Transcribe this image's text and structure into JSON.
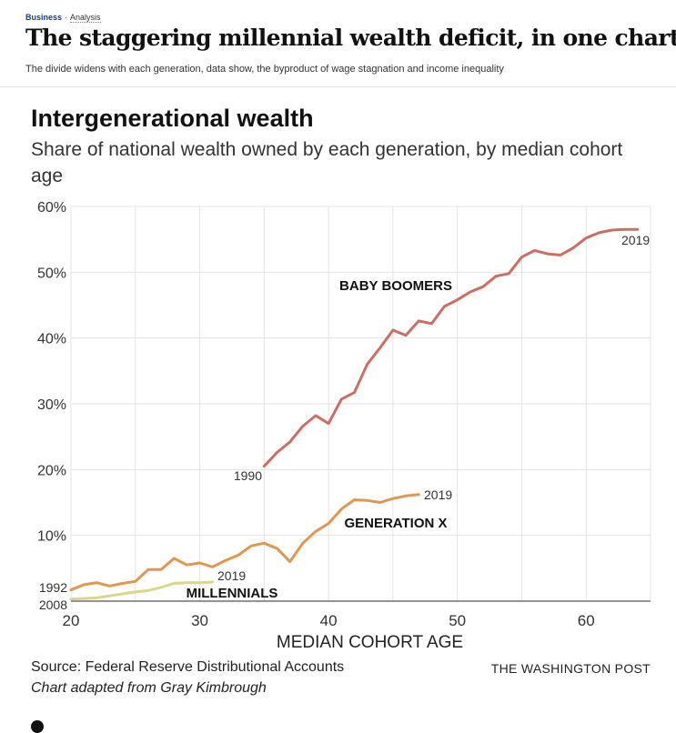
{
  "article": {
    "section": "Business",
    "tag": "Analysis",
    "headline": "The staggering millennial wealth deficit, in one chart",
    "dek": "The divide widens with each generation, data show, the byproduct of wage stagnation and income inequality"
  },
  "chart_data": {
    "type": "line",
    "title": "Intergenerational wealth",
    "subtitle": "Share of national wealth owned by each generation, by median cohort age",
    "xlabel": "MEDIAN COHORT AGE",
    "ylabel": "",
    "xlim": [
      20,
      65
    ],
    "ylim": [
      0,
      60
    ],
    "x_ticks": [
      20,
      30,
      40,
      50,
      60
    ],
    "x_tick_labels": [
      "20",
      "30",
      "40",
      "50",
      "60"
    ],
    "y_ticks": [
      10,
      20,
      30,
      40,
      50,
      60
    ],
    "y_tick_labels": [
      "10%",
      "20%",
      "30%",
      "40%",
      "50%",
      "60%"
    ],
    "grid": true,
    "legend": "none",
    "series": [
      {
        "name": "BABY BOOMERS",
        "color": "#cc6e62",
        "start_label": "1990",
        "end_label": "2019",
        "x": [
          35,
          36,
          37,
          38,
          39,
          40,
          41,
          42,
          43,
          44,
          45,
          46,
          47,
          48,
          49,
          50,
          51,
          52,
          53,
          54,
          55,
          56,
          57,
          58,
          59,
          60,
          61,
          62,
          63,
          64
        ],
        "values": [
          20.5,
          22.6,
          24.2,
          26.6,
          28.2,
          27.0,
          30.7,
          31.7,
          36.0,
          38.5,
          41.2,
          40.4,
          42.6,
          42.2,
          44.8,
          45.8,
          47.0,
          47.8,
          49.4,
          49.8,
          52.3,
          53.3,
          52.8,
          52.6,
          53.7,
          55.2,
          56.0,
          56.4,
          56.5,
          56.5
        ]
      },
      {
        "name": "GENERATION X",
        "color": "#e0974f",
        "start_label": "1992",
        "end_label": "2019",
        "x": [
          20,
          21,
          22,
          23,
          24,
          25,
          26,
          27,
          28,
          29,
          30,
          31,
          32,
          33,
          34,
          35,
          36,
          37,
          38,
          39,
          40,
          41,
          42,
          43,
          44,
          45,
          46,
          47
        ],
        "values": [
          1.7,
          2.5,
          2.8,
          2.3,
          2.7,
          3.0,
          4.8,
          4.8,
          6.5,
          5.5,
          5.8,
          5.2,
          6.2,
          7.0,
          8.4,
          8.8,
          8.0,
          6.0,
          8.8,
          10.6,
          11.8,
          14.0,
          15.4,
          15.3,
          15.0,
          15.6,
          16.0,
          16.2
        ]
      },
      {
        "name": "MILLENNIALS",
        "color": "#d9d78a",
        "start_label": "2008",
        "end_label": "2019",
        "x": [
          20,
          21,
          22,
          23,
          24,
          25,
          26,
          27,
          28,
          29,
          30,
          31
        ],
        "values": [
          0.3,
          0.4,
          0.5,
          0.8,
          1.1,
          1.4,
          1.6,
          2.1,
          2.7,
          2.8,
          2.8,
          2.9
        ]
      }
    ]
  },
  "footer": {
    "source": "Source: Federal Reserve Distributional Accounts",
    "adapted": "Chart adapted from Gray Kimbrough",
    "brand": "THE WASHINGTON POST"
  }
}
